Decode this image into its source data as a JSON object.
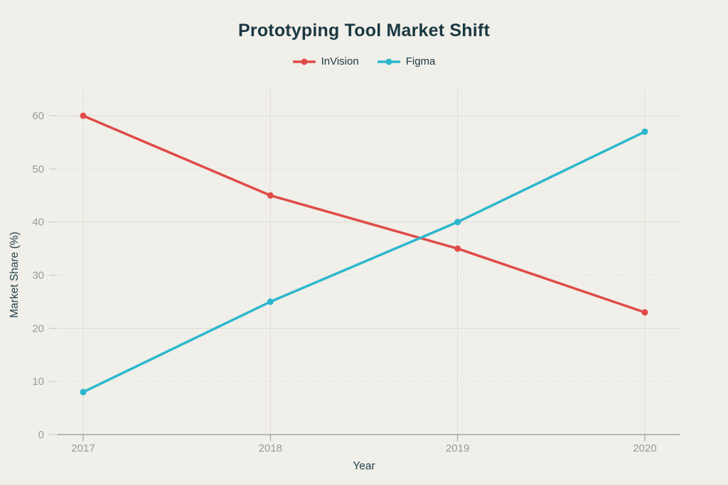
{
  "chart_data": {
    "type": "line",
    "title": "Prototyping Tool Market Shift",
    "xlabel": "Year",
    "ylabel": "Market Share (%)",
    "categories": [
      "2017",
      "2018",
      "2019",
      "2020"
    ],
    "series": [
      {
        "name": "InVision",
        "color": "#e04b48",
        "values": [
          60,
          45,
          35,
          23
        ]
      },
      {
        "name": "Figma",
        "color": "#2cb7ce",
        "values": [
          8,
          25,
          40,
          57
        ]
      }
    ],
    "ylim": [
      0,
      60
    ],
    "yticks": [
      0,
      10,
      20,
      30,
      40,
      50,
      60
    ],
    "legend_position": "top",
    "grid": {
      "vertical": "solid line at each year",
      "horizontal_major": "solid at 0, 20, 40, 60",
      "horizontal_minor": "dotted at 10, 30, 50"
    }
  },
  "colors": {
    "background": "#f0efe9",
    "title_text": "#1b3842",
    "axis_title_text": "#24424b",
    "tick_label_text": "#9b9b94",
    "axis_line": "#96968e",
    "gridline_major": "#dcdbd3",
    "gridline_minor": "#d8d7cf",
    "invision_red": "#e04b48",
    "figma_cyan": "#2cb7ce"
  }
}
